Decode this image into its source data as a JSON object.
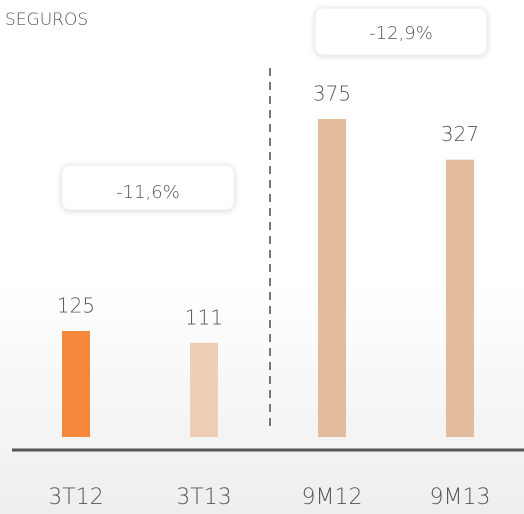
{
  "chart_data": {
    "type": "bar",
    "title": "SEGUROS",
    "categories": [
      "3T12",
      "3T13",
      "9M12",
      "9M13"
    ],
    "values": [
      125,
      111,
      375,
      327
    ],
    "colors": [
      "#f5883a",
      "#f0cdb5",
      "#e2bc9c",
      "#e2bc9c"
    ],
    "ylim": [
      0,
      500
    ],
    "annotations": [
      "-11,6%",
      "-12,9%"
    ]
  }
}
